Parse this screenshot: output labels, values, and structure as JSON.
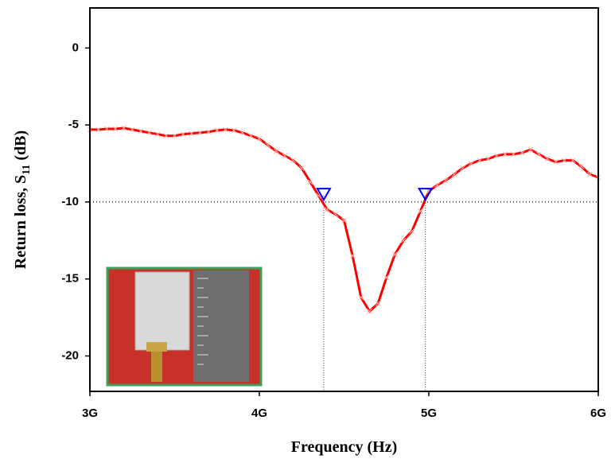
{
  "chart_data": {
    "type": "line",
    "xlabel": "Frequency (Hz)",
    "ylabel": [
      "Return loss, S",
      "11",
      "(dB)"
    ],
    "x": [
      3000000000,
      3050000000,
      3100000000,
      3150000000,
      3200000000,
      3250000000,
      3300000000,
      3350000000,
      3400000000,
      3450000000,
      3500000000,
      3550000000,
      3600000000,
      3650000000,
      3700000000,
      3750000000,
      3800000000,
      3850000000,
      3900000000,
      3950000000,
      4000000000,
      4050000000,
      4100000000,
      4150000000,
      4200000000,
      4250000000,
      4300000000,
      4350000000,
      4400000000,
      4450000000,
      4500000000,
      4550000000,
      4600000000,
      4650000000,
      4700000000,
      4750000000,
      4800000000,
      4850000000,
      4900000000,
      4950000000,
      5000000000,
      5050000000,
      5100000000,
      5150000000,
      5200000000,
      5250000000,
      5300000000,
      5350000000,
      5400000000,
      5450000000,
      5500000000,
      5550000000,
      5600000000,
      5650000000,
      5700000000,
      5750000000,
      5800000000,
      5850000000,
      5900000000,
      5950000000,
      6000000000
    ],
    "values": [
      -5.3,
      -5.3,
      -5.25,
      -5.25,
      -5.2,
      -5.3,
      -5.4,
      -5.5,
      -5.6,
      -5.7,
      -5.7,
      -5.6,
      -5.55,
      -5.5,
      -5.45,
      -5.35,
      -5.3,
      -5.35,
      -5.5,
      -5.7,
      -5.9,
      -6.3,
      -6.7,
      -7.0,
      -7.3,
      -7.8,
      -8.7,
      -9.6,
      -10.5,
      -10.8,
      -11.2,
      -13.5,
      -16.2,
      -17.1,
      -16.6,
      -14.9,
      -13.4,
      -12.5,
      -11.9,
      -10.6,
      -9.3,
      -8.9,
      -8.6,
      -8.2,
      -7.8,
      -7.5,
      -7.3,
      -7.2,
      -7.0,
      -6.9,
      -6.9,
      -6.8,
      -6.6,
      -6.9,
      -7.2,
      -7.4,
      -7.3,
      -7.3,
      -7.7,
      -8.2,
      -8.4
    ],
    "color": "#ff0000",
    "reference_y": -10,
    "markers": {
      "x": [
        4380000000,
        4980000000
      ],
      "y": [
        -9.6,
        -9.6
      ],
      "color": "#0000ff"
    },
    "xlim": [
      3000000000,
      6000000000
    ],
    "xticks": [
      {
        "value": 3000000000,
        "label": "3G"
      },
      {
        "value": 4000000000,
        "label": "4G"
      },
      {
        "value": 5000000000,
        "label": "5G"
      },
      {
        "value": 6000000000,
        "label": "6G"
      }
    ],
    "ylim": [
      -22.3,
      2.6
    ],
    "yticks": [
      -20,
      -15,
      -10,
      -5,
      0
    ]
  }
}
